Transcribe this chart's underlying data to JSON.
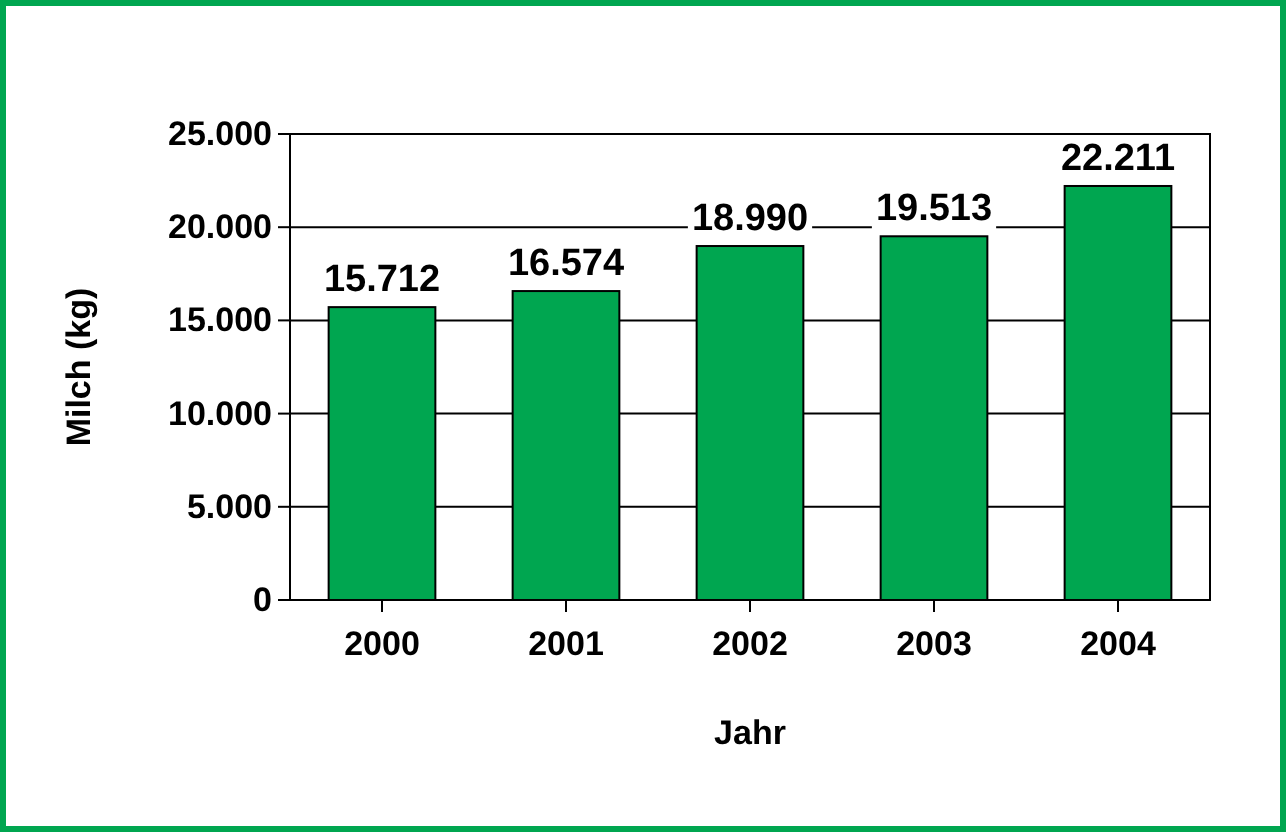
{
  "chart_data": {
    "type": "bar",
    "xlabel": "Jahr",
    "ylabel": "Milch (kg)",
    "categories": [
      "2000",
      "2001",
      "2002",
      "2003",
      "2004"
    ],
    "values": [
      15712,
      16574,
      18990,
      19513,
      22211
    ],
    "value_labels": [
      "15.712",
      "16.574",
      "18.990",
      "19.513",
      "22.211"
    ],
    "color": "#00a650",
    "ylim": [
      0,
      25000
    ],
    "yticks": [
      {
        "value": 0,
        "label": "0"
      },
      {
        "value": 5000,
        "label": "5.000"
      },
      {
        "value": 10000,
        "label": "10.000"
      },
      {
        "value": 15000,
        "label": "15.000"
      },
      {
        "value": 20000,
        "label": "20.000"
      },
      {
        "value": 25000,
        "label": "25.000"
      }
    ],
    "grid": "y"
  }
}
